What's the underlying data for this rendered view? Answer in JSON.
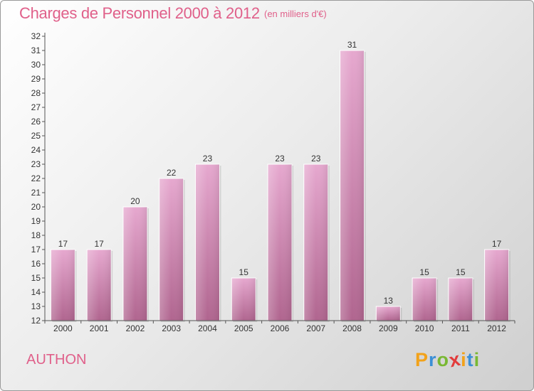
{
  "header": {
    "title": "Charges de Personnel 2000 à 2012",
    "subtitle": "(en milliers d'€)"
  },
  "footer": {
    "commune": "AUTHON",
    "logo": {
      "letters": [
        "P",
        "r",
        "o",
        "x",
        "i",
        "t",
        "i"
      ],
      "colors": [
        "#f2a21a",
        "#3b8fd6",
        "#79b833",
        "#e23c3c",
        "#f2a21a",
        "#3b8fd6",
        "#79b833"
      ]
    }
  },
  "chart_data": {
    "type": "bar",
    "title": "Charges de Personnel 2000 à 2012",
    "subtitle": "(en milliers d'€)",
    "categories": [
      "2000",
      "2001",
      "2002",
      "2003",
      "2004",
      "2005",
      "2006",
      "2007",
      "2008",
      "2009",
      "2010",
      "2011",
      "2012"
    ],
    "values": [
      17,
      17,
      20,
      22,
      23,
      15,
      23,
      23,
      31,
      13,
      15,
      15,
      17
    ],
    "ylim": [
      12,
      32
    ],
    "yticks": [
      12,
      13,
      14,
      15,
      16,
      17,
      18,
      19,
      20,
      21,
      22,
      23,
      24,
      25,
      26,
      27,
      28,
      29,
      30,
      31,
      32
    ],
    "grid": false,
    "bar_color_top": "#e6a8cf",
    "bar_color_bottom": "#b0658f",
    "axis_color": "#555555",
    "label_color": "#333333"
  }
}
